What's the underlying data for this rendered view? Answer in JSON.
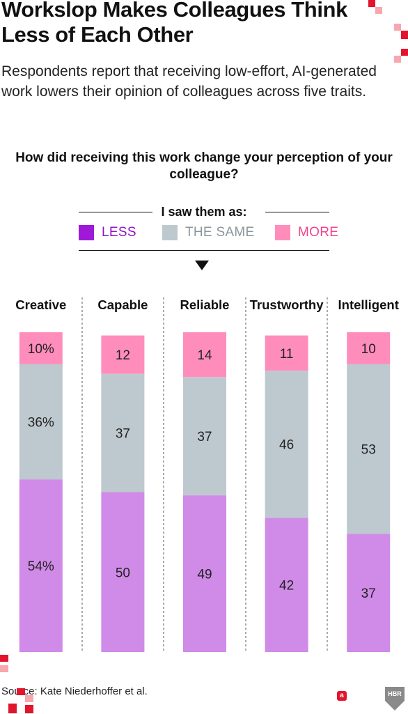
{
  "title": "Workslop Makes Colleagues Think Less of Each Other",
  "subtitle": "Respondents report that receiving low-effort, AI-generated work lowers their opinion of colleagues across five traits.",
  "question": "How did receiving this work change your perception of your colleague?",
  "legend": {
    "heading": "I saw them as:",
    "items": [
      {
        "label": "LESS",
        "color": "#9f1ad8",
        "text_color": "#8f14c8"
      },
      {
        "label": "THE SAME",
        "color": "#bec9cf",
        "text_color": "#8a969c"
      },
      {
        "label": "MORE",
        "color": "#ff8dbb",
        "text_color": "#f2438c"
      }
    ]
  },
  "colors": {
    "less_bar": "#d08ae8",
    "same_bar": "#bec9cf",
    "more_bar": "#ff8dbb",
    "accent_red": "#e3142d",
    "hbr_gray": "#8a8a8a"
  },
  "chart_data": {
    "type": "bar",
    "stacked": true,
    "categories": [
      "Creative",
      "Capable",
      "Reliable",
      "Trustworthy",
      "Intelligent"
    ],
    "series": [
      {
        "name": "LESS",
        "values": [
          54,
          50,
          49,
          42,
          37
        ],
        "labels": [
          "54%",
          "50",
          "49",
          "42",
          "37"
        ]
      },
      {
        "name": "THE SAME",
        "values": [
          36,
          37,
          37,
          46,
          53
        ],
        "labels": [
          "36%",
          "37",
          "37",
          "46",
          "53"
        ]
      },
      {
        "name": "MORE",
        "values": [
          10,
          12,
          14,
          11,
          10
        ],
        "labels": [
          "10%",
          "12",
          "14",
          "11",
          "10"
        ]
      }
    ],
    "ylim": [
      0,
      100
    ],
    "grid": false,
    "legend_position": "top"
  },
  "source": "Source: Kate Niederhoffer et al.",
  "hbr_logo": "HBR",
  "badge": "a"
}
